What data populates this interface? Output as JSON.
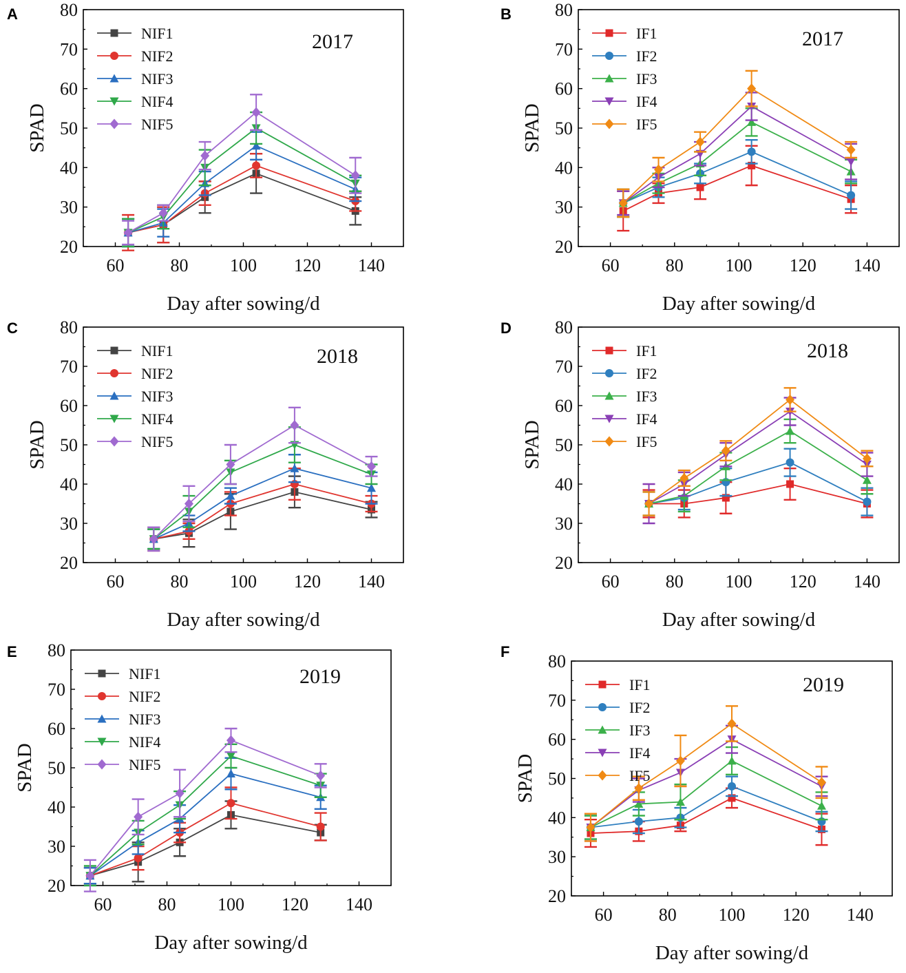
{
  "figure": {
    "colors": {
      "NIF1": "#444444",
      "NIF2": "#e0352f",
      "NIF3": "#2a6fc0",
      "NIF4": "#2fa84a",
      "NIF5": "#a06ad0",
      "IF1": "#e02a2a",
      "IF2": "#2f7fbf",
      "IF3": "#3bb04a",
      "IF4": "#8a3fb5",
      "IF5": "#f08a14"
    },
    "markers": {
      "1": "square",
      "2": "circle",
      "3": "triangle-up",
      "4": "triangle-down",
      "5": "diamond"
    }
  },
  "chart_data": [
    {
      "panel": "A",
      "type": "line",
      "year": "2017",
      "xlabel": "Day after sowing/d",
      "ylabel": "SPAD",
      "xlim": [
        50,
        150
      ],
      "ylim": [
        20,
        80
      ],
      "xticks": [
        60,
        80,
        100,
        120,
        140
      ],
      "yticks": [
        20,
        30,
        40,
        50,
        60,
        70,
        80
      ],
      "x": [
        64,
        75,
        88,
        104,
        135
      ],
      "series": [
        {
          "name": "NIF1",
          "values": [
            23.5,
            25.5,
            32.5,
            38.5,
            29
          ],
          "err": [
            3.5,
            4.5,
            4,
            5,
            3.5
          ]
        },
        {
          "name": "NIF2",
          "values": [
            23.5,
            25.5,
            33.5,
            40.5,
            31.5
          ],
          "err": [
            4.5,
            4.5,
            3,
            3,
            2.5
          ]
        },
        {
          "name": "NIF3",
          "values": [
            23.5,
            26,
            36,
            45.5,
            34.5
          ],
          "err": [
            3.5,
            3.5,
            3,
            3.5,
            3
          ]
        },
        {
          "name": "NIF4",
          "values": [
            23.5,
            27.5,
            40,
            50,
            36
          ],
          "err": [
            3.5,
            3,
            4.5,
            4,
            2
          ]
        },
        {
          "name": "NIF5",
          "values": [
            23.5,
            28.5,
            43,
            54,
            38
          ],
          "err": [
            3,
            2,
            3.5,
            4.5,
            4.5
          ]
        }
      ]
    },
    {
      "panel": "B",
      "type": "line",
      "year": "2017",
      "xlabel": "Day after sowing/d",
      "ylabel": "SPAD",
      "xlim": [
        50,
        150
      ],
      "ylim": [
        20,
        80
      ],
      "xticks": [
        60,
        80,
        100,
        120,
        140
      ],
      "yticks": [
        20,
        30,
        40,
        50,
        60,
        70,
        80
      ],
      "x": [
        64,
        75,
        88,
        104,
        135
      ],
      "series": [
        {
          "name": "IF1",
          "values": [
            29,
            33.5,
            35,
            40.5,
            32
          ],
          "err": [
            5,
            2.5,
            3,
            5,
            3.5
          ]
        },
        {
          "name": "IF2",
          "values": [
            31,
            35,
            38.5,
            44,
            33
          ],
          "err": [
            3.5,
            2.5,
            2.5,
            3,
            3.5
          ]
        },
        {
          "name": "IF3",
          "values": [
            31,
            36,
            41,
            51.5,
            39
          ],
          "err": [
            3.5,
            2.5,
            3,
            3.5,
            3
          ]
        },
        {
          "name": "IF4",
          "values": [
            31,
            37.5,
            43.5,
            55.5,
            41.5
          ],
          "err": [
            3,
            2.5,
            3,
            3.5,
            4.5
          ]
        },
        {
          "name": "IF5",
          "values": [
            31,
            39.5,
            46.5,
            60,
            44.5
          ],
          "err": [
            3.5,
            3,
            2.5,
            4.5,
            2
          ]
        }
      ]
    },
    {
      "panel": "C",
      "type": "line",
      "year": "2018",
      "xlabel": "Day after sowing/d",
      "ylabel": "SPAD",
      "xlim": [
        50,
        150
      ],
      "ylim": [
        20,
        80
      ],
      "xticks": [
        60,
        80,
        100,
        120,
        140
      ],
      "yticks": [
        20,
        30,
        40,
        50,
        60,
        70,
        80
      ],
      "x": [
        72,
        83,
        96,
        116,
        140
      ],
      "series": [
        {
          "name": "NIF1",
          "values": [
            26,
            27.5,
            33,
            38,
            33.5
          ],
          "err": [
            2.5,
            3.5,
            4.5,
            4,
            2
          ]
        },
        {
          "name": "NIF2",
          "values": [
            26,
            28,
            35,
            40,
            35
          ],
          "err": [
            3,
            2,
            3,
            4,
            2
          ]
        },
        {
          "name": "NIF3",
          "values": [
            26,
            30,
            37,
            44,
            39
          ],
          "err": [
            2.5,
            2,
            2,
            3.5,
            4
          ]
        },
        {
          "name": "NIF4",
          "values": [
            26,
            33,
            43,
            50,
            42.5
          ],
          "err": [
            2.5,
            4,
            3,
            4.5,
            2.5
          ]
        },
        {
          "name": "NIF5",
          "values": [
            26,
            35,
            45,
            55,
            44.5
          ],
          "err": [
            3,
            4.5,
            5,
            4.5,
            2.5
          ]
        }
      ]
    },
    {
      "panel": "D",
      "type": "line",
      "year": "2018",
      "xlabel": "Day after sowing/d",
      "ylabel": "SPAD",
      "xlim": [
        50,
        150
      ],
      "ylim": [
        20,
        80
      ],
      "xticks": [
        60,
        80,
        100,
        120,
        140
      ],
      "yticks": [
        20,
        30,
        40,
        50,
        60,
        70,
        80
      ],
      "x": [
        72,
        83,
        96,
        116,
        140
      ],
      "series": [
        {
          "name": "IF1",
          "values": [
            35,
            35,
            36.5,
            40,
            35
          ],
          "err": [
            3.5,
            3.5,
            4,
            4,
            3.5
          ]
        },
        {
          "name": "IF2",
          "values": [
            35,
            36.5,
            40.5,
            45.5,
            35.5
          ],
          "err": [
            3,
            3,
            3.5,
            3.5,
            3.5
          ]
        },
        {
          "name": "IF3",
          "values": [
            35,
            37,
            44.5,
            53.5,
            41
          ],
          "err": [
            3,
            4,
            3.5,
            3,
            3.5
          ]
        },
        {
          "name": "IF4",
          "values": [
            35,
            40,
            47.5,
            58.5,
            45
          ],
          "err": [
            5,
            3,
            3,
            3.5,
            3
          ]
        },
        {
          "name": "IF5",
          "values": [
            35,
            41.5,
            48.5,
            61.5,
            46.5
          ],
          "err": [
            3,
            2,
            2.5,
            3,
            2
          ]
        }
      ]
    },
    {
      "panel": "E",
      "type": "line",
      "year": "2019",
      "xlabel": "Day after sowing/d",
      "ylabel": "SPAD",
      "xlim": [
        50,
        150
      ],
      "ylim": [
        20,
        80
      ],
      "xticks": [
        60,
        80,
        100,
        120,
        140
      ],
      "yticks": [
        20,
        30,
        40,
        50,
        60,
        70,
        80
      ],
      "x": [
        56,
        71,
        84,
        100,
        128
      ],
      "series": [
        {
          "name": "NIF1",
          "values": [
            22.5,
            26,
            31,
            38,
            33.5
          ],
          "err": [
            2,
            5,
            3.5,
            3.5,
            2
          ]
        },
        {
          "name": "NIF2",
          "values": [
            22.5,
            27,
            33.5,
            41,
            35
          ],
          "err": [
            2,
            3,
            2.5,
            4,
            3.5
          ]
        },
        {
          "name": "NIF3",
          "values": [
            22.5,
            31,
            37,
            48.5,
            42.5
          ],
          "err": [
            2,
            3,
            3.5,
            4,
            3
          ]
        },
        {
          "name": "NIF4",
          "values": [
            22.5,
            33.5,
            40.5,
            53,
            45.5
          ],
          "err": [
            2.5,
            3,
            3.5,
            3,
            3
          ]
        },
        {
          "name": "NIF5",
          "values": [
            22.5,
            37.5,
            43.5,
            57,
            48
          ],
          "err": [
            4,
            4.5,
            6,
            3,
            3
          ]
        }
      ]
    },
    {
      "panel": "F",
      "type": "line",
      "year": "2019",
      "xlabel": "Day after sowing/d",
      "ylabel": "SPAD",
      "xlim": [
        50,
        150
      ],
      "ylim": [
        20,
        80
      ],
      "xticks": [
        60,
        80,
        100,
        120,
        140
      ],
      "yticks": [
        20,
        30,
        40,
        50,
        60,
        70,
        80
      ],
      "x": [
        56,
        71,
        84,
        100,
        128
      ],
      "series": [
        {
          "name": "IF1",
          "values": [
            36,
            36.5,
            38,
            45,
            37
          ],
          "err": [
            3.5,
            2.5,
            1.5,
            2.5,
            4
          ]
        },
        {
          "name": "IF2",
          "values": [
            37.5,
            39,
            40,
            48,
            39
          ],
          "err": [
            3,
            3,
            2.5,
            2.5,
            2.5
          ]
        },
        {
          "name": "IF3",
          "values": [
            37.5,
            43.5,
            44,
            54.5,
            43
          ],
          "err": [
            3,
            3,
            4.5,
            3.5,
            3.5
          ]
        },
        {
          "name": "IF4",
          "values": [
            37.5,
            47,
            51.5,
            60,
            48
          ],
          "err": [
            3.5,
            3,
            3.5,
            3.5,
            2.5
          ]
        },
        {
          "name": "IF5",
          "values": [
            37.5,
            47.5,
            54.5,
            64,
            49
          ],
          "err": [
            3.5,
            3,
            6.5,
            4.5,
            4
          ]
        }
      ]
    }
  ]
}
